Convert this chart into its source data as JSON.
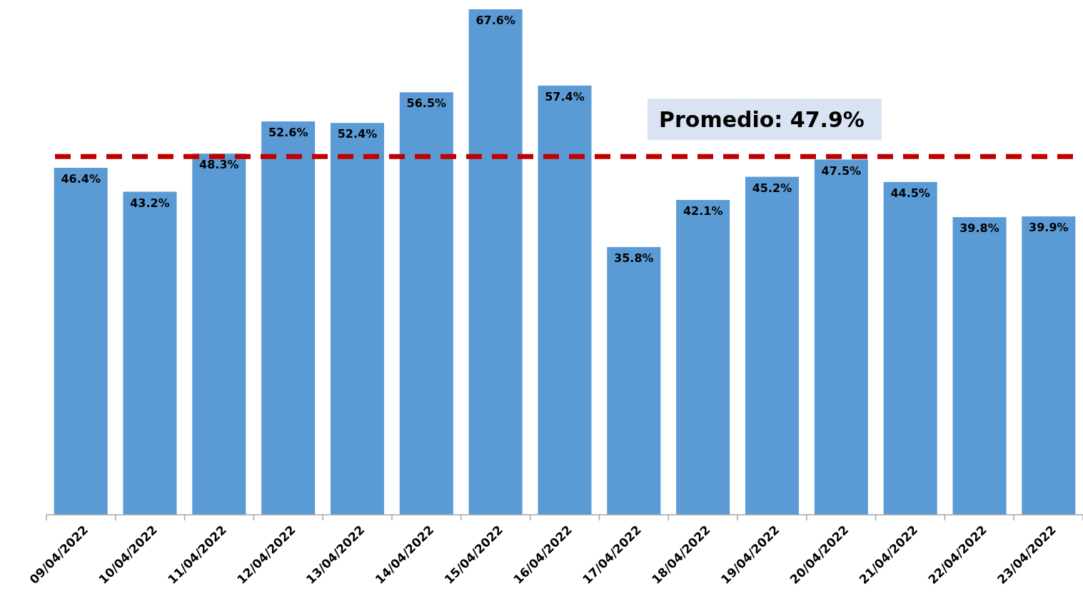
{
  "chart_data": {
    "type": "bar",
    "categories": [
      "09/04/2022",
      "10/04/2022",
      "11/04/2022",
      "12/04/2022",
      "13/04/2022",
      "14/04/2022",
      "15/04/2022",
      "16/04/2022",
      "17/04/2022",
      "18/04/2022",
      "19/04/2022",
      "20/04/2022",
      "21/04/2022",
      "22/04/2022",
      "23/04/2022"
    ],
    "values": [
      46.4,
      43.2,
      48.3,
      52.6,
      52.4,
      56.5,
      67.6,
      57.4,
      35.8,
      42.1,
      45.2,
      47.5,
      44.5,
      39.8,
      39.9
    ],
    "value_labels": [
      "46.4%",
      "43.2%",
      "48.3%",
      "52.6%",
      "52.4%",
      "56.5%",
      "67.6%",
      "57.4%",
      "35.8%",
      "42.1%",
      "45.2%",
      "47.5%",
      "44.5%",
      "39.8%",
      "39.9%"
    ],
    "color": "#5b9bd5",
    "ref_lines": [
      {
        "axis": "y",
        "value": 47.9,
        "label": "Promedio: 47.9%",
        "color": "#c00000",
        "line_style": "dashed"
      }
    ],
    "tick_labels": "x"
  }
}
